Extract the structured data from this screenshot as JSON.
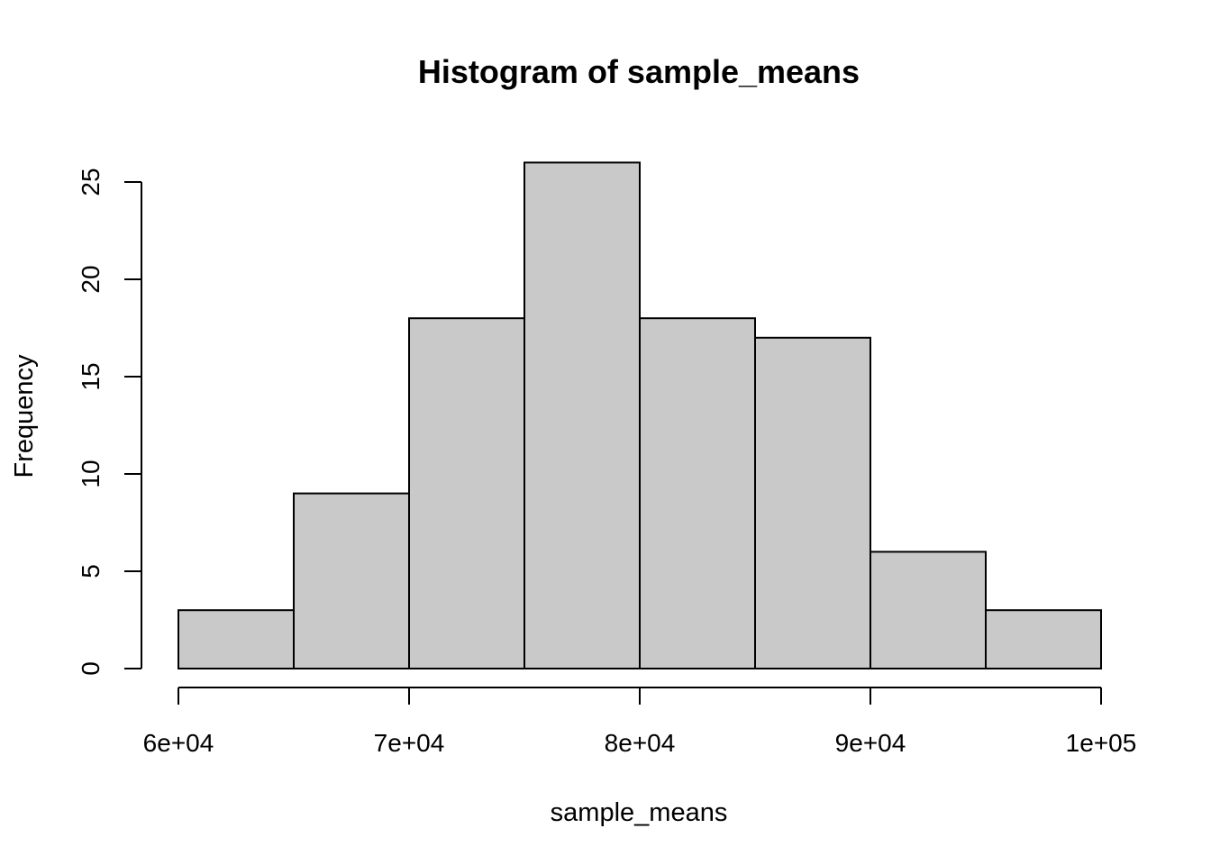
{
  "chart_data": {
    "type": "bar",
    "title": "Histogram of sample_means",
    "xlabel": "sample_means",
    "ylabel": "Frequency",
    "bins": [
      {
        "start": 60000,
        "end": 65000,
        "count": 3
      },
      {
        "start": 65000,
        "end": 70000,
        "count": 9
      },
      {
        "start": 70000,
        "end": 75000,
        "count": 18
      },
      {
        "start": 75000,
        "end": 80000,
        "count": 26
      },
      {
        "start": 80000,
        "end": 85000,
        "count": 18
      },
      {
        "start": 85000,
        "end": 90000,
        "count": 17
      },
      {
        "start": 90000,
        "end": 95000,
        "count": 6
      },
      {
        "start": 95000,
        "end": 100000,
        "count": 3
      }
    ],
    "xlim": [
      60000,
      100000
    ],
    "ylim": [
      0,
      26
    ],
    "x_ticks": [
      {
        "value": 60000,
        "label": "6e+04"
      },
      {
        "value": 70000,
        "label": "7e+04"
      },
      {
        "value": 80000,
        "label": "8e+04"
      },
      {
        "value": 90000,
        "label": "9e+04"
      },
      {
        "value": 100000,
        "label": "1e+05"
      }
    ],
    "y_ticks": [
      {
        "value": 0,
        "label": "0"
      },
      {
        "value": 5,
        "label": "5"
      },
      {
        "value": 10,
        "label": "10"
      },
      {
        "value": 15,
        "label": "15"
      },
      {
        "value": 20,
        "label": "20"
      },
      {
        "value": 25,
        "label": "25"
      }
    ],
    "bar_color": "#c9c9c9",
    "border_color": "#000000",
    "grid": false
  }
}
